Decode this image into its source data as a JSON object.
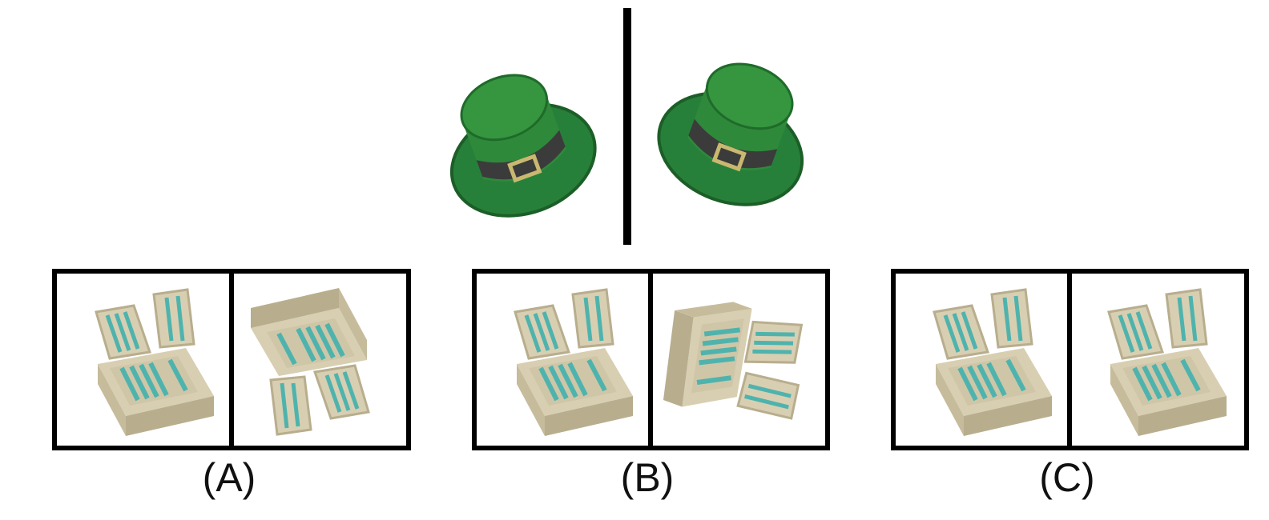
{
  "reference": {
    "left": {
      "object": "leprechaun-top-hat",
      "view": "buckle-front-tilted"
    },
    "right": {
      "object": "leprechaun-top-hat",
      "view": "buckle-side-tilted"
    }
  },
  "options": [
    {
      "label": "(A)",
      "left": "box-upright",
      "right": "box-flipped-over"
    },
    {
      "label": "(B)",
      "left": "box-upright",
      "right": "box-rotated-sideways"
    },
    {
      "label": "(C)",
      "left": "box-upright",
      "right": "box-upright"
    }
  ],
  "colors": {
    "hat_green": "#2e8a3a",
    "hat_dark": "#1f6b2a",
    "hat_band": "#3b3b3b",
    "buckle": "#c9b870",
    "box_body": "#d8cfb2",
    "box_shade": "#b8ae8e",
    "box_inner": "#4fb3ad",
    "frame": "#000000"
  }
}
